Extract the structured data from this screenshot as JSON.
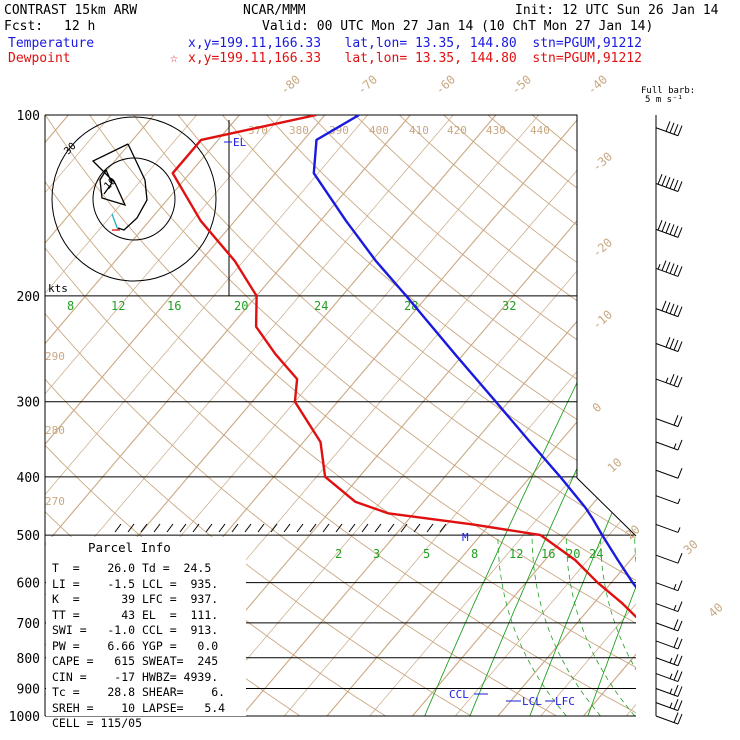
{
  "header": {
    "model": "CONTRAST 15km ARW",
    "center": "NCAR/MMM",
    "init": "Init: 12 UTC Sun 26 Jan 14",
    "fcst_label": "Fcst:",
    "fcst_value": "12 h",
    "valid": "Valid: 00 UTC Mon 27 Jan 14 (10 ChT Mon 27 Jan 14)",
    "temp_label": "Temperature",
    "temp_info": "x,y=199.11,166.33   lat,lon= 13.35, 144.80  stn=PGUM,91212",
    "dew_label": "Dewpoint",
    "dew_marker": "☆",
    "dew_info": "x,y=199.11,166.33   lat,lon= 13.35, 144.80  stn=PGUM,91212",
    "barb_title1": "Full barb:",
    "barb_title2": "5 m s⁻¹"
  },
  "colors": {
    "temperature": "#1a1adf",
    "dewpoint": "#e01010",
    "isotherm": "#c9a882",
    "mixing_ratio": "#22a022",
    "isobar": "#000000"
  },
  "parcel_info": {
    "title": "Parcel Info",
    "rows": [
      "T  =    26.0 Td =  24.5",
      "LI =    -1.5 LCL =  935.",
      "K  =      39 LFC =  937.",
      "TT =      43 EL  =  111.",
      "SWI =   -1.0 CCL =  913.",
      "PW =    6.66 YGP =   0.0",
      "CAPE =   615 SWEAT=  245",
      "CIN =    -17 HWBZ= 4939.",
      "Tc =    28.8 SHEAR=    6.",
      "SREH =    10 LAPSE=   5.4",
      "CELL = 115/05"
    ]
  },
  "chart_data": {
    "type": "line",
    "title": "",
    "ylabel": "",
    "pressure_levels": [
      "100",
      "200",
      "300",
      "400",
      "500",
      "600",
      "700",
      "800",
      "900",
      "1000"
    ],
    "isotherm_labels": [
      "-80",
      "-70",
      "-60",
      "-50",
      "-40",
      "-30",
      "-20",
      "-10",
      "0",
      "10",
      "20",
      "30",
      "40"
    ],
    "theta_labels": [
      "370",
      "380",
      "390",
      "400",
      "410",
      "420",
      "430",
      "440",
      "290",
      "280",
      "270"
    ],
    "mixing_ratio_labels_upper": [
      "8",
      "12",
      "16",
      "20",
      "24",
      "28",
      "32"
    ],
    "mixing_ratio_labels_lower": [
      "2",
      "3",
      "5",
      "8",
      "12",
      "16",
      "20",
      "24"
    ],
    "level_markers": [
      "EL",
      "M",
      "CCL",
      "LCL",
      "LFC"
    ],
    "hodograph_labels": [
      "kts",
      "30",
      "10"
    ],
    "series": [
      {
        "name": "Temperature",
        "points": [
          [
            1000,
            26.0
          ],
          [
            975,
            25.2
          ],
          [
            950,
            24.5
          ],
          [
            925,
            23.0
          ],
          [
            900,
            21.6
          ],
          [
            850,
            19.4
          ],
          [
            800,
            16.6
          ],
          [
            750,
            13.4
          ],
          [
            700,
            10.0
          ],
          [
            650,
            6.5
          ],
          [
            600,
            2.5
          ],
          [
            550,
            -1.5
          ],
          [
            500,
            -5.8
          ],
          [
            470,
            -8.5
          ],
          [
            450,
            -10.5
          ],
          [
            400,
            -16.5
          ],
          [
            350,
            -23.5
          ],
          [
            300,
            -31.5
          ],
          [
            250,
            -41.0
          ],
          [
            200,
            -52.5
          ],
          [
            175,
            -59.5
          ],
          [
            150,
            -67.0
          ],
          [
            125,
            -75.5
          ],
          [
            110,
            -78.5
          ],
          [
            100,
            -76.0
          ]
        ]
      },
      {
        "name": "Dewpoint",
        "points": [
          [
            1000,
            24.5
          ],
          [
            975,
            22.8
          ],
          [
            950,
            20.0
          ],
          [
            925,
            19.5
          ],
          [
            900,
            18.5
          ],
          [
            850,
            16.8
          ],
          [
            800,
            14.4
          ],
          [
            750,
            11.2
          ],
          [
            700,
            7.6
          ],
          [
            650,
            3.4
          ],
          [
            600,
            -1.6
          ],
          [
            550,
            -6.5
          ],
          [
            500,
            -13.0
          ],
          [
            480,
            -22.0
          ],
          [
            460,
            -33.0
          ],
          [
            440,
            -38.0
          ],
          [
            400,
            -44.0
          ],
          [
            350,
            -48.0
          ],
          [
            300,
            -55.0
          ],
          [
            275,
            -57.0
          ],
          [
            250,
            -62.0
          ],
          [
            225,
            -67.0
          ],
          [
            200,
            -70.0
          ],
          [
            175,
            -76.0
          ],
          [
            150,
            -84.0
          ],
          [
            125,
            -92.0
          ],
          [
            110,
            -92.0
          ],
          [
            100,
            -81.0
          ]
        ]
      }
    ],
    "wind_profile": [
      {
        "p": 105,
        "speed_ms": 22
      },
      {
        "p": 130,
        "speed_ms": 30
      },
      {
        "p": 155,
        "speed_ms": 30
      },
      {
        "p": 180,
        "speed_ms": 28
      },
      {
        "p": 210,
        "speed_ms": 27
      },
      {
        "p": 240,
        "speed_ms": 22
      },
      {
        "p": 275,
        "speed_ms": 18
      },
      {
        "p": 320,
        "speed_ms": 12
      },
      {
        "p": 350,
        "speed_ms": 8
      },
      {
        "p": 390,
        "speed_ms": 5
      },
      {
        "p": 430,
        "speed_ms": 3
      },
      {
        "p": 480,
        "speed_ms": 3
      },
      {
        "p": 540,
        "speed_ms": 7
      },
      {
        "p": 600,
        "speed_ms": 8
      },
      {
        "p": 650,
        "speed_ms": 9
      },
      {
        "p": 700,
        "speed_ms": 10
      },
      {
        "p": 750,
        "speed_ms": 12
      },
      {
        "p": 800,
        "speed_ms": 13
      },
      {
        "p": 850,
        "speed_ms": 14
      },
      {
        "p": 900,
        "speed_ms": 14
      },
      {
        "p": 950,
        "speed_ms": 13
      },
      {
        "p": 1000,
        "speed_ms": 10
      }
    ]
  }
}
